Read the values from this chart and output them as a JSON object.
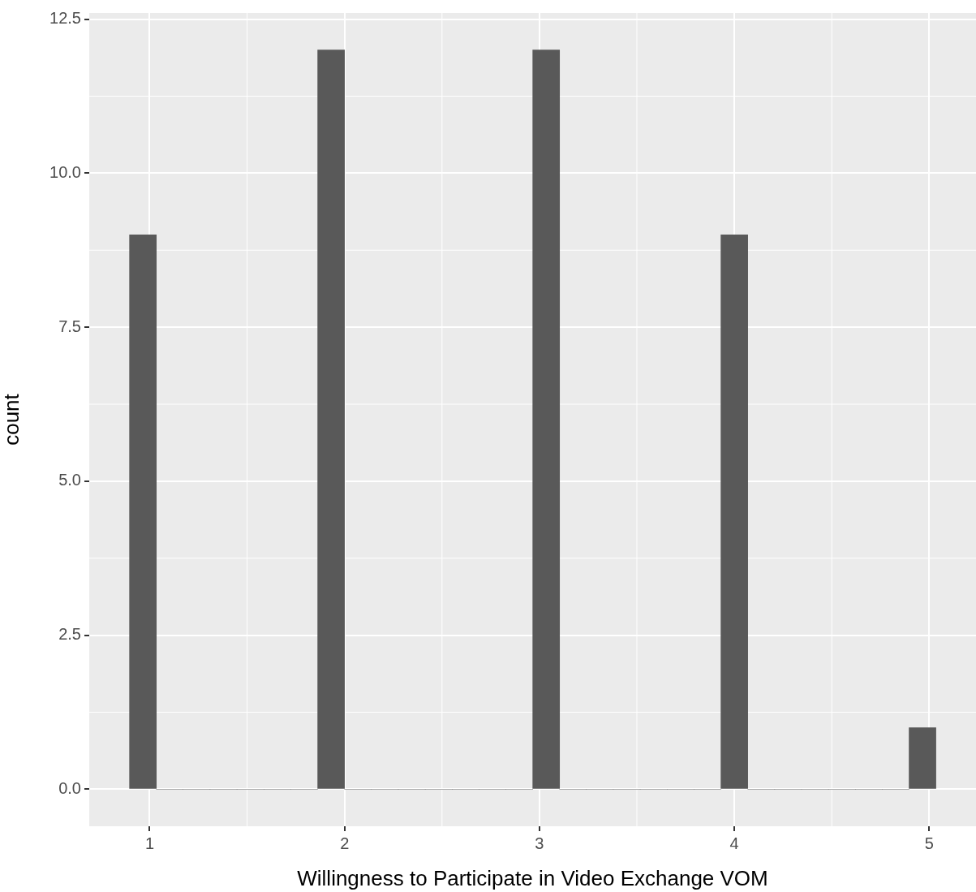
{
  "chart_data": {
    "type": "histogram",
    "xlabel": "Willingness to Participate in Video Exchange VOM",
    "ylabel": "count",
    "bins": [
      0.897,
      1.034,
      1.172,
      1.31,
      1.448,
      1.586,
      1.724,
      1.862,
      2.0,
      2.138,
      2.276,
      2.414,
      2.552,
      2.69,
      2.828,
      2.966,
      3.103,
      3.241,
      3.379,
      3.517,
      3.655,
      3.793,
      3.931,
      4.069,
      4.207,
      4.345,
      4.483,
      4.621,
      4.759,
      4.897,
      5.034
    ],
    "values": [
      9,
      0,
      0,
      0,
      0,
      0,
      0,
      12,
      0,
      0,
      0,
      0,
      0,
      0,
      0,
      12,
      0,
      0,
      0,
      0,
      0,
      0,
      9,
      0,
      0,
      0,
      0,
      0,
      0,
      1
    ],
    "color": "#595959",
    "xlim": [
      0.69,
      5.24
    ],
    "xticks": [
      1,
      2,
      3,
      4,
      5
    ],
    "ylim": [
      -0.6,
      12.6
    ],
    "yticks": [
      {
        "value": 0,
        "label": "0.0"
      },
      {
        "value": 2.5,
        "label": "2.5"
      },
      {
        "value": 5,
        "label": "5.0"
      },
      {
        "value": 7.5,
        "label": "7.5"
      },
      {
        "value": 10,
        "label": "10.0"
      },
      {
        "value": 12.5,
        "label": "12.5"
      }
    ],
    "grid": true,
    "legend": false
  }
}
